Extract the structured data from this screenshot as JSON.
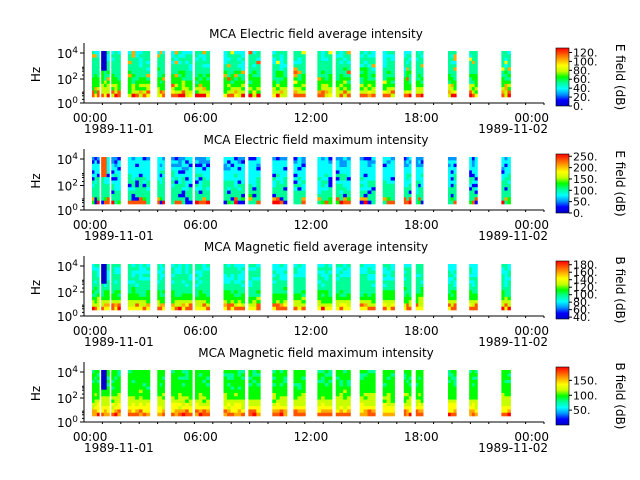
{
  "chart_data": [
    {
      "type": "heatmap",
      "title": "MCA  Electric field average intensity",
      "ylabel": "Hz",
      "y_scale": "log",
      "y_ticks": [
        "10^4",
        "10^2",
        "10^0"
      ],
      "x_ticks": [
        "00:00",
        "06:00",
        "12:00",
        "18:00",
        "00:00"
      ],
      "x_start_date": "1989-11-01",
      "x_end_date": "1989-11-02",
      "colorbar_label": "E field (dB)",
      "colorbar_ticks": [
        "120.",
        "100.",
        "80.",
        "60.",
        "40.",
        "20.",
        "0."
      ],
      "colorbar_range": [
        0,
        130
      ]
    },
    {
      "type": "heatmap",
      "title": "MCA  Electric field maximum intensity",
      "ylabel": "Hz",
      "y_scale": "log",
      "y_ticks": [
        "10^4",
        "10^2",
        "10^0"
      ],
      "x_ticks": [
        "00:00",
        "06:00",
        "12:00",
        "18:00",
        "00:00"
      ],
      "x_start_date": "1989-11-01",
      "x_end_date": "1989-11-02",
      "colorbar_label": "E field (dB)",
      "colorbar_ticks": [
        "250.",
        "200.",
        "150.",
        "100.",
        "50.",
        "0."
      ],
      "colorbar_range": [
        0,
        260
      ]
    },
    {
      "type": "heatmap",
      "title": "MCA  Magnetic field average intensity",
      "ylabel": "Hz",
      "y_scale": "log",
      "y_ticks": [
        "10^4",
        "10^2",
        "10^0"
      ],
      "x_ticks": [
        "00:00",
        "06:00",
        "12:00",
        "18:00",
        "00:00"
      ],
      "x_start_date": "1989-11-01",
      "x_end_date": "1989-11-02",
      "colorbar_label": "B field (dB)",
      "colorbar_ticks": [
        "180.",
        "160.",
        "140.",
        "120.",
        "100.",
        "80.",
        "60.",
        "40."
      ],
      "colorbar_range": [
        35,
        190
      ]
    },
    {
      "type": "heatmap",
      "title": "MCA  Magnetic field maximum intensity",
      "ylabel": "Hz",
      "y_scale": "log",
      "y_ticks": [
        "10^4",
        "10^2",
        "10^0"
      ],
      "x_ticks": [
        "00:00",
        "06:00",
        "12:00",
        "18:00",
        "00:00"
      ],
      "x_start_date": "1989-11-01",
      "x_end_date": "1989-11-02",
      "colorbar_label": "B field (dB)",
      "colorbar_ticks": [
        "150.",
        "100.",
        "50."
      ],
      "colorbar_range": [
        0,
        195
      ]
    }
  ],
  "data_segments_utc": [
    [
      "00:06",
      "00:30"
    ],
    [
      "00:36",
      "01:03"
    ],
    [
      "01:09",
      "01:39"
    ],
    [
      "02:03",
      "03:15"
    ],
    [
      "03:39",
      "04:03"
    ],
    [
      "04:24",
      "05:33"
    ],
    [
      "05:42",
      "06:30"
    ],
    [
      "07:15",
      "08:24"
    ],
    [
      "08:36",
      "09:15"
    ],
    [
      "09:54",
      "10:42"
    ],
    [
      "11:03",
      "11:42"
    ],
    [
      "12:21",
      "13:09"
    ],
    [
      "13:21",
      "14:09"
    ],
    [
      "14:39",
      "15:30"
    ],
    [
      "15:54",
      "16:33"
    ],
    [
      "17:03",
      "17:27"
    ],
    [
      "17:42",
      "18:06"
    ],
    [
      "19:27",
      "19:54"
    ],
    [
      "20:36",
      "21:03"
    ],
    [
      "22:21",
      "22:51"
    ]
  ],
  "colormap": [
    "#0000c8",
    "#0000ff",
    "#0096ff",
    "#00ffff",
    "#00ff96",
    "#00ff00",
    "#c8ff00",
    "#ffff00",
    "#ffaa00",
    "#ff5500",
    "#ff0000"
  ]
}
